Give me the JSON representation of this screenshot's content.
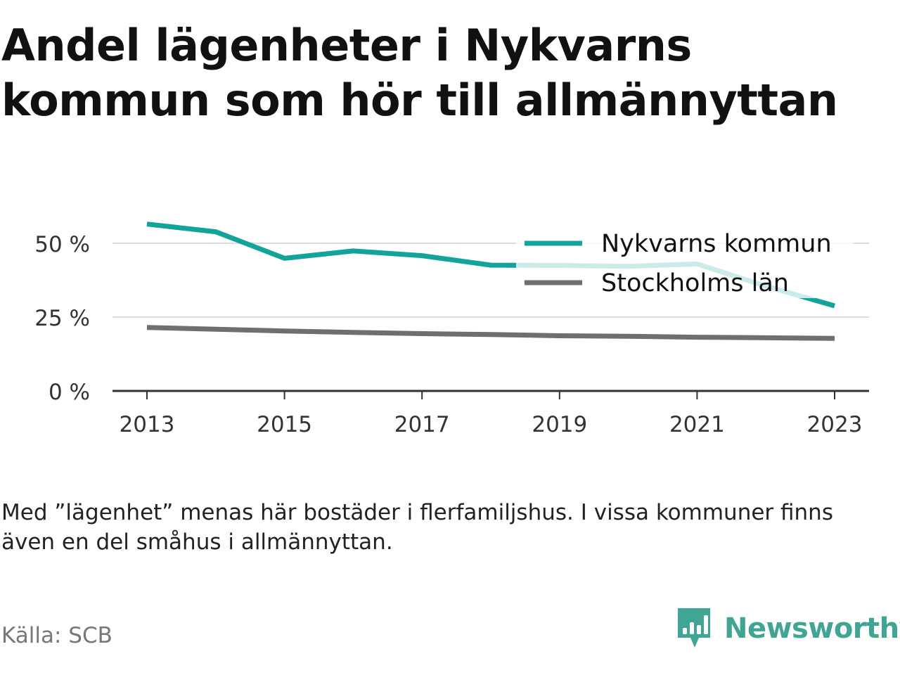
{
  "title": "Andel lägenheter i Nykvarns kommun som hör till allmännyttan",
  "note": "Med ”lägenhet” menas här bostäder i flerfamiljshus. I vissa kommuner finns även en del småhus i allmännyttan.",
  "source": "Källa: SCB",
  "brand": {
    "name": "Newsworthy",
    "color": "#40a593",
    "icon": "bar-chart-speech-bubble-icon"
  },
  "chart_data": {
    "type": "line",
    "title": "",
    "xlabel": "",
    "ylabel": "",
    "x": [
      2013,
      2014,
      2015,
      2016,
      2017,
      2018,
      2019,
      2020,
      2021,
      2022,
      2023
    ],
    "xticks": [
      "2013",
      "2015",
      "2017",
      "2019",
      "2021",
      "2023"
    ],
    "yticks": [
      "0 %",
      "25 %",
      "50 %"
    ],
    "ylim": [
      0,
      55
    ],
    "grid": true,
    "legend_position": "top-right",
    "series": [
      {
        "name": "Nykvarns kommun",
        "color": "#12a39a",
        "values": [
          56.5,
          53.9,
          44.9,
          47.4,
          45.8,
          42.6,
          42.5,
          42.2,
          43.0,
          35.5,
          28.8
        ]
      },
      {
        "name": "Stockholms län",
        "color": "#6e6e73",
        "values": [
          21.5,
          20.9,
          20.3,
          19.8,
          19.4,
          19.1,
          18.7,
          18.5,
          18.2,
          18.0,
          17.8
        ]
      }
    ]
  }
}
